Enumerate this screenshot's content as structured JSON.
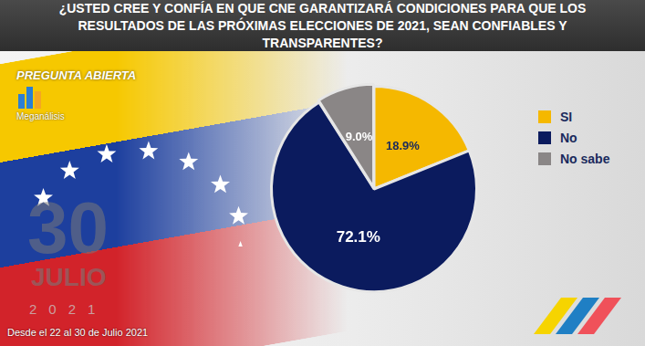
{
  "chart_data": {
    "type": "pie",
    "title": "¿USTED CREE Y CONFÍA EN QUE CNE GARANTIZARÁ CONDICIONES PARA QUE LOS RESULTADOS DE LAS PRÓXIMAS ELECCIONES DE 2021, SEAN CONFIABLES Y TRANSPARENTES?",
    "categories": [
      "SI",
      "No",
      "No sabe"
    ],
    "values": [
      18.9,
      72.1,
      9.0
    ],
    "value_labels": [
      "18.9%",
      "72.1%",
      "9.0%"
    ],
    "colors": [
      "#f5b800",
      "#0b1b5e",
      "#8a8686"
    ],
    "data_labels": true,
    "legend": "right",
    "annotations": [
      "PREGUNTA ABIERTA",
      "Meganálisis",
      "30",
      "JULIO",
      "2021",
      "Desde el 22 al 30 de Julio 2021"
    ]
  }
}
